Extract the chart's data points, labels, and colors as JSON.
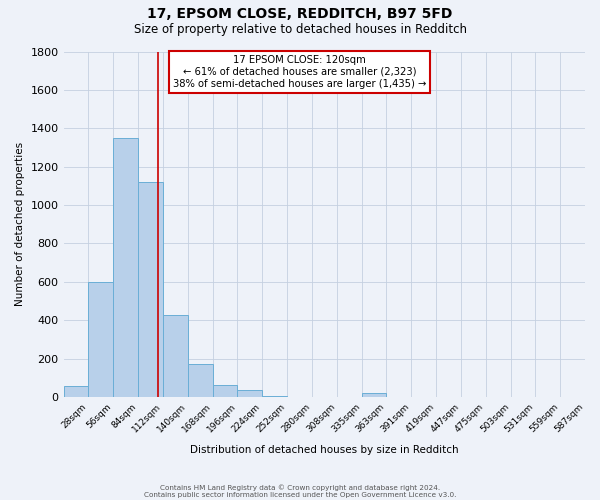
{
  "title1": "17, EPSOM CLOSE, REDDITCH, B97 5FD",
  "title2": "Size of property relative to detached houses in Redditch",
  "xlabel": "Distribution of detached houses by size in Redditch",
  "ylabel": "Number of detached properties",
  "bin_width": 28,
  "bin_starts": [
    14,
    42,
    70,
    98,
    126,
    154,
    182,
    210,
    238,
    266,
    294,
    322,
    350,
    378,
    406,
    434,
    462,
    490,
    518,
    546,
    574
  ],
  "tick_labels": [
    "28sqm",
    "56sqm",
    "84sqm",
    "112sqm",
    "140sqm",
    "168sqm",
    "196sqm",
    "224sqm",
    "252sqm",
    "280sqm",
    "308sqm",
    "335sqm",
    "363sqm",
    "391sqm",
    "419sqm",
    "447sqm",
    "475sqm",
    "503sqm",
    "531sqm",
    "559sqm",
    "587sqm"
  ],
  "bar_values": [
    55,
    600,
    1350,
    1120,
    425,
    170,
    60,
    35,
    5,
    0,
    0,
    0,
    20,
    0,
    0,
    0,
    0,
    0,
    0,
    0,
    0
  ],
  "bar_color": "#b8d0ea",
  "bar_edge_color": "#6aaed6",
  "property_line_x": 120,
  "ylim": [
    0,
    1800
  ],
  "yticks": [
    0,
    200,
    400,
    600,
    800,
    1000,
    1200,
    1400,
    1600,
    1800
  ],
  "annotation_line1": "17 EPSOM CLOSE: 120sqm",
  "annotation_line2": "← 61% of detached houses are smaller (2,323)",
  "annotation_line3": "38% of semi-detached houses are larger (1,435) →",
  "annotation_box_color": "#cc0000",
  "footer1": "Contains HM Land Registry data © Crown copyright and database right 2024.",
  "footer2": "Contains public sector information licensed under the Open Government Licence v3.0.",
  "background_color": "#eef2f9",
  "grid_color": "#c5d0e0"
}
